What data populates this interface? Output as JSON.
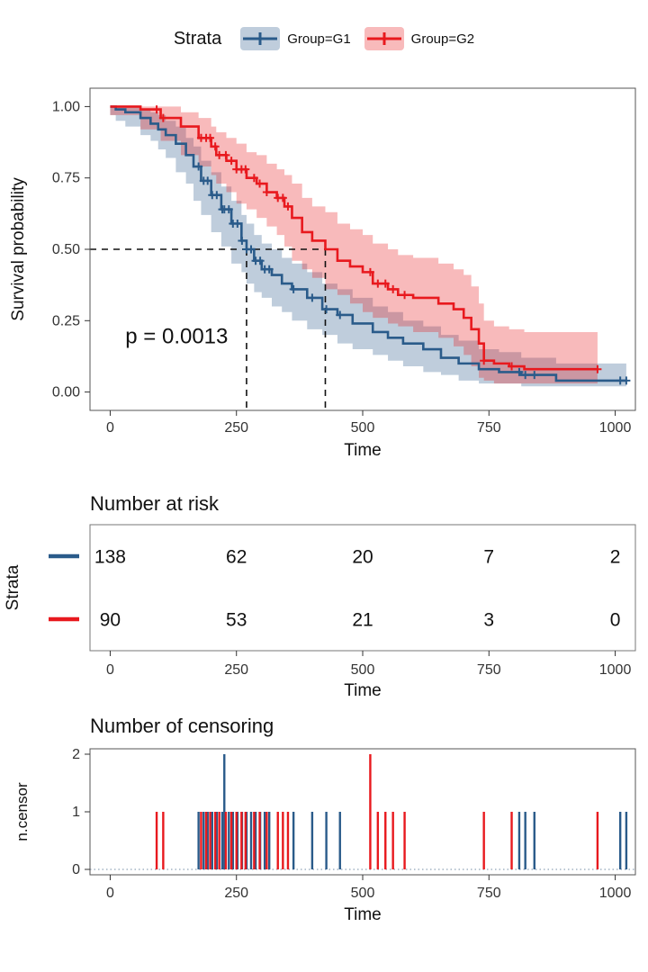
{
  "legend": {
    "title": "Strata",
    "items": [
      {
        "label": "Group=G1",
        "color": "#2a5b8a"
      },
      {
        "label": "Group=G2",
        "color": "#e8191e"
      }
    ]
  },
  "chart_data": [
    {
      "type": "line",
      "title": "",
      "xlabel": "Time",
      "ylabel": "Survival probability",
      "xlim": [
        0,
        1022
      ],
      "ylim": [
        0,
        1
      ],
      "xticks": [
        0,
        250,
        500,
        750,
        1000
      ],
      "yticks": [
        0,
        0.25,
        0.5,
        0.75,
        1.0
      ],
      "ytick_labels": [
        "0.00",
        "0.25",
        "0.50",
        "0.75",
        "1.00"
      ],
      "pvalue": {
        "label": "p = 0.0013",
        "t": 30,
        "s": 0.17
      },
      "median": {
        "y": 0.5,
        "times": [
          270,
          426
        ]
      },
      "series": [
        {
          "name": "Group=G1",
          "color": "#2a5b8a",
          "steps": [
            [
              0,
              1.0,
              1.0,
              1.0
            ],
            [
              11,
              0.99,
              0.97,
              1.0
            ],
            [
              30,
              0.98,
              0.95,
              1.0
            ],
            [
              60,
              0.96,
              0.93,
              0.99
            ],
            [
              80,
              0.94,
              0.9,
              0.98
            ],
            [
              95,
              0.92,
              0.88,
              0.97
            ],
            [
              110,
              0.9,
              0.85,
              0.95
            ],
            [
              130,
              0.87,
              0.82,
              0.93
            ],
            [
              150,
              0.83,
              0.77,
              0.89
            ],
            [
              165,
              0.79,
              0.73,
              0.86
            ],
            [
              180,
              0.74,
              0.67,
              0.81
            ],
            [
              200,
              0.69,
              0.62,
              0.77
            ],
            [
              220,
              0.64,
              0.56,
              0.72
            ],
            [
              240,
              0.59,
              0.51,
              0.67
            ],
            [
              260,
              0.53,
              0.45,
              0.62
            ],
            [
              270,
              0.5,
              0.42,
              0.59
            ],
            [
              285,
              0.46,
              0.38,
              0.55
            ],
            [
              300,
              0.43,
              0.35,
              0.52
            ],
            [
              320,
              0.41,
              0.33,
              0.5
            ],
            [
              340,
              0.38,
              0.3,
              0.47
            ],
            [
              360,
              0.36,
              0.28,
              0.45
            ],
            [
              390,
              0.33,
              0.25,
              0.42
            ],
            [
              420,
              0.29,
              0.22,
              0.38
            ],
            [
              450,
              0.27,
              0.2,
              0.36
            ],
            [
              480,
              0.24,
              0.17,
              0.33
            ],
            [
              520,
              0.21,
              0.15,
              0.3
            ],
            [
              550,
              0.19,
              0.13,
              0.28
            ],
            [
              580,
              0.17,
              0.11,
              0.25
            ],
            [
              620,
              0.15,
              0.09,
              0.23
            ],
            [
              655,
              0.12,
              0.07,
              0.2
            ],
            [
              690,
              0.1,
              0.06,
              0.18
            ],
            [
              730,
              0.08,
              0.04,
              0.15
            ],
            [
              770,
              0.07,
              0.03,
              0.14
            ],
            [
              814,
              0.06,
              0.03,
              0.12
            ],
            [
              883,
              0.04,
              0.02,
              0.1
            ],
            [
              1022,
              0.04,
              0.02,
              0.1
            ]
          ]
        },
        {
          "name": "Group=G2",
          "color": "#e8191e",
          "steps": [
            [
              0,
              1.0,
              1.0,
              1.0
            ],
            [
              60,
              0.99,
              0.97,
              1.0
            ],
            [
              100,
              0.96,
              0.92,
              1.0
            ],
            [
              140,
              0.93,
              0.88,
              0.98
            ],
            [
              175,
              0.89,
              0.83,
              0.96
            ],
            [
              200,
              0.86,
              0.79,
              0.93
            ],
            [
              210,
              0.83,
              0.76,
              0.91
            ],
            [
              230,
              0.81,
              0.73,
              0.89
            ],
            [
              250,
              0.78,
              0.7,
              0.87
            ],
            [
              270,
              0.75,
              0.66,
              0.84
            ],
            [
              290,
              0.73,
              0.64,
              0.83
            ],
            [
              310,
              0.7,
              0.61,
              0.8
            ],
            [
              330,
              0.68,
              0.58,
              0.78
            ],
            [
              345,
              0.65,
              0.55,
              0.76
            ],
            [
              360,
              0.61,
              0.51,
              0.73
            ],
            [
              380,
              0.56,
              0.46,
              0.68
            ],
            [
              400,
              0.53,
              0.43,
              0.65
            ],
            [
              426,
              0.5,
              0.4,
              0.63
            ],
            [
              450,
              0.46,
              0.36,
              0.59
            ],
            [
              475,
              0.44,
              0.34,
              0.57
            ],
            [
              500,
              0.42,
              0.31,
              0.55
            ],
            [
              520,
              0.38,
              0.28,
              0.52
            ],
            [
              550,
              0.36,
              0.26,
              0.5
            ],
            [
              570,
              0.34,
              0.24,
              0.48
            ],
            [
              600,
              0.33,
              0.23,
              0.47
            ],
            [
              650,
              0.31,
              0.21,
              0.45
            ],
            [
              680,
              0.29,
              0.19,
              0.43
            ],
            [
              700,
              0.26,
              0.16,
              0.41
            ],
            [
              715,
              0.22,
              0.13,
              0.37
            ],
            [
              730,
              0.17,
              0.09,
              0.31
            ],
            [
              740,
              0.11,
              0.05,
              0.25
            ],
            [
              760,
              0.1,
              0.04,
              0.23
            ],
            [
              790,
              0.09,
              0.03,
              0.22
            ],
            [
              820,
              0.08,
              0.03,
              0.21
            ],
            [
              965,
              0.08,
              0.03,
              0.21
            ]
          ]
        }
      ]
    },
    {
      "type": "table",
      "title": "Number at risk",
      "xlabel": "Time",
      "ylabel": "Strata",
      "times": [
        0,
        250,
        500,
        750,
        1000
      ],
      "rows": [
        {
          "name": "Group=G1",
          "color": "#2a5b8a",
          "counts": [
            138,
            62,
            20,
            7,
            2
          ]
        },
        {
          "name": "Group=G2",
          "color": "#e8191e",
          "counts": [
            90,
            53,
            21,
            3,
            0
          ]
        }
      ]
    },
    {
      "type": "bar",
      "title": "Number of censoring",
      "xlabel": "Time",
      "ylabel": "n.censor",
      "xticks": [
        0,
        250,
        500,
        750,
        1000
      ],
      "yticks": [
        0,
        1,
        2
      ],
      "series": [
        {
          "name": "Group=G1",
          "color": "#2a5b8a",
          "bars": [
            [
              175,
              1
            ],
            [
              185,
              1
            ],
            [
              193,
              1
            ],
            [
              202,
              1
            ],
            [
              211,
              1
            ],
            [
              222,
              1
            ],
            [
              226,
              2
            ],
            [
              235,
              1
            ],
            [
              243,
              1
            ],
            [
              252,
              1
            ],
            [
              261,
              1
            ],
            [
              270,
              1
            ],
            [
              279,
              1
            ],
            [
              288,
              1
            ],
            [
              297,
              1
            ],
            [
              306,
              1
            ],
            [
              315,
              1
            ],
            [
              363,
              1
            ],
            [
              400,
              1
            ],
            [
              428,
              1
            ],
            [
              455,
              1
            ],
            [
              810,
              1
            ],
            [
              822,
              1
            ],
            [
              840,
              1
            ],
            [
              1010,
              1
            ],
            [
              1022,
              1
            ]
          ]
        },
        {
          "name": "Group=G2",
          "color": "#e8191e",
          "bars": [
            [
              92,
              1
            ],
            [
              105,
              1
            ],
            [
              180,
              1
            ],
            [
              190,
              1
            ],
            [
              198,
              1
            ],
            [
              208,
              1
            ],
            [
              216,
              1
            ],
            [
              229,
              1
            ],
            [
              240,
              1
            ],
            [
              250,
              1
            ],
            [
              260,
              1
            ],
            [
              268,
              1
            ],
            [
              285,
              1
            ],
            [
              296,
              1
            ],
            [
              310,
              1
            ],
            [
              332,
              1
            ],
            [
              342,
              1
            ],
            [
              352,
              1
            ],
            [
              515,
              2
            ],
            [
              530,
              1
            ],
            [
              545,
              1
            ],
            [
              560,
              1
            ],
            [
              583,
              1
            ],
            [
              740,
              1
            ],
            [
              795,
              1
            ],
            [
              965,
              1
            ]
          ]
        }
      ]
    }
  ]
}
